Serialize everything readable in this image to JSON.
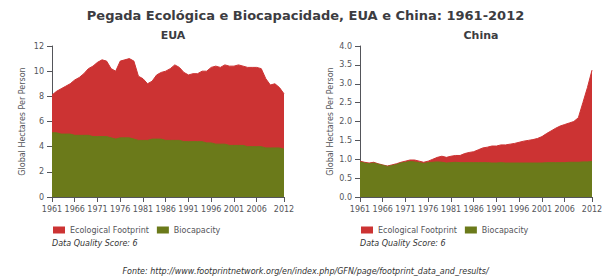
{
  "title": "Pegada Ecológica e Biocapacidade, EUA e China: 1961-2012",
  "annotations": [
    "Fonte: http://www.footprintnetwork.org/en/index.php/GFN/page/footprint_data_and_results/"
  ],
  "chart_data": [
    {
      "type": "area",
      "title": "EUA",
      "y_label": "Global Hectares Per Person",
      "x": [
        1961,
        1962,
        1963,
        1964,
        1965,
        1966,
        1967,
        1968,
        1969,
        1970,
        1971,
        1972,
        1973,
        1974,
        1975,
        1976,
        1977,
        1978,
        1979,
        1980,
        1981,
        1982,
        1983,
        1984,
        1985,
        1986,
        1987,
        1988,
        1989,
        1990,
        1991,
        1992,
        1993,
        1994,
        1995,
        1996,
        1997,
        1998,
        1999,
        2000,
        2001,
        2002,
        2003,
        2004,
        2005,
        2006,
        2007,
        2008,
        2009,
        2010,
        2011,
        2012
      ],
      "series": [
        {
          "name": "Ecological Footprint",
          "color": "#cc3333",
          "values": [
            8.1,
            8.4,
            8.6,
            8.8,
            9.0,
            9.3,
            9.5,
            9.8,
            10.2,
            10.4,
            10.7,
            10.9,
            10.8,
            10.2,
            10.0,
            10.8,
            10.9,
            11.0,
            10.8,
            9.6,
            9.4,
            9.0,
            9.2,
            9.7,
            9.9,
            10.0,
            10.2,
            10.5,
            10.3,
            9.9,
            9.7,
            9.8,
            9.8,
            10.0,
            10.0,
            10.3,
            10.4,
            10.3,
            10.5,
            10.4,
            10.4,
            10.5,
            10.4,
            10.3,
            10.3,
            10.3,
            10.2,
            9.4,
            8.9,
            9.0,
            8.7,
            8.2
          ]
        },
        {
          "name": "Biocapacity",
          "color": "#6b7a1a",
          "values": [
            5.1,
            5.1,
            5.0,
            5.0,
            5.0,
            4.9,
            4.9,
            4.9,
            4.9,
            4.8,
            4.8,
            4.8,
            4.8,
            4.7,
            4.6,
            4.7,
            4.7,
            4.7,
            4.6,
            4.5,
            4.5,
            4.5,
            4.6,
            4.6,
            4.6,
            4.5,
            4.5,
            4.5,
            4.5,
            4.4,
            4.4,
            4.4,
            4.4,
            4.4,
            4.3,
            4.3,
            4.2,
            4.2,
            4.2,
            4.1,
            4.1,
            4.1,
            4.1,
            4.0,
            4.0,
            4.0,
            4.0,
            3.9,
            3.9,
            3.9,
            3.9,
            3.8
          ]
        }
      ],
      "xlim": [
        1961,
        2012
      ],
      "xticks": [
        1961,
        1966,
        1971,
        1976,
        1981,
        1986,
        1991,
        1996,
        2001,
        2006,
        2012
      ],
      "ylim": [
        0,
        12
      ],
      "yticks": [
        0,
        2,
        4,
        6,
        8,
        10,
        12
      ],
      "grid": false,
      "legend": "below",
      "annotations": [
        "Data Quality Score: 6"
      ]
    },
    {
      "type": "area",
      "title": "China",
      "y_label": "Global Hectares Per Person",
      "x": [
        1961,
        1962,
        1963,
        1964,
        1965,
        1966,
        1967,
        1968,
        1969,
        1970,
        1971,
        1972,
        1973,
        1974,
        1975,
        1976,
        1977,
        1978,
        1979,
        1980,
        1981,
        1982,
        1983,
        1984,
        1985,
        1986,
        1987,
        1988,
        1989,
        1990,
        1991,
        1992,
        1993,
        1994,
        1995,
        1996,
        1997,
        1998,
        1999,
        2000,
        2001,
        2002,
        2003,
        2004,
        2005,
        2006,
        2007,
        2008,
        2009,
        2010,
        2011,
        2012
      ],
      "series": [
        {
          "name": "Ecological Footprint",
          "color": "#cc3333",
          "values": [
            0.95,
            0.92,
            0.9,
            0.92,
            0.88,
            0.85,
            0.82,
            0.85,
            0.88,
            0.92,
            0.95,
            0.98,
            0.98,
            0.95,
            0.92,
            0.95,
            1.0,
            1.05,
            1.08,
            1.05,
            1.08,
            1.1,
            1.1,
            1.15,
            1.18,
            1.2,
            1.25,
            1.3,
            1.32,
            1.35,
            1.35,
            1.38,
            1.38,
            1.4,
            1.42,
            1.45,
            1.48,
            1.5,
            1.52,
            1.55,
            1.6,
            1.68,
            1.75,
            1.82,
            1.88,
            1.92,
            1.96,
            2.0,
            2.1,
            2.5,
            2.9,
            3.36
          ]
        },
        {
          "name": "Biocapacity",
          "color": "#6b7a1a",
          "values": [
            0.93,
            0.9,
            0.88,
            0.9,
            0.87,
            0.84,
            0.81,
            0.83,
            0.86,
            0.9,
            0.92,
            0.94,
            0.93,
            0.91,
            0.89,
            0.91,
            0.92,
            0.93,
            0.92,
            0.9,
            0.91,
            0.92,
            0.91,
            0.91,
            0.91,
            0.91,
            0.91,
            0.91,
            0.91,
            0.9,
            0.9,
            0.91,
            0.9,
            0.9,
            0.9,
            0.9,
            0.9,
            0.9,
            0.9,
            0.9,
            0.9,
            0.91,
            0.91,
            0.91,
            0.91,
            0.91,
            0.92,
            0.92,
            0.92,
            0.93,
            0.93,
            0.94
          ]
        }
      ],
      "xlim": [
        1961,
        2012
      ],
      "xticks": [
        1961,
        1966,
        1971,
        1976,
        1981,
        1986,
        1991,
        1996,
        2001,
        2006,
        2012
      ],
      "ylim": [
        0,
        4
      ],
      "yticks": [
        {
          "value": 0.0,
          "label": "0.0"
        },
        0.5,
        {
          "value": 1.0,
          "label": "1.0"
        },
        1.5,
        {
          "value": 2.0,
          "label": "2.0"
        },
        2.5,
        {
          "value": 3.0,
          "label": "3.0"
        },
        3.5,
        {
          "value": 4.0,
          "label": "4.0"
        }
      ],
      "grid": false,
      "legend": "below",
      "annotations": [
        "Data Quality Score: 6"
      ]
    }
  ]
}
